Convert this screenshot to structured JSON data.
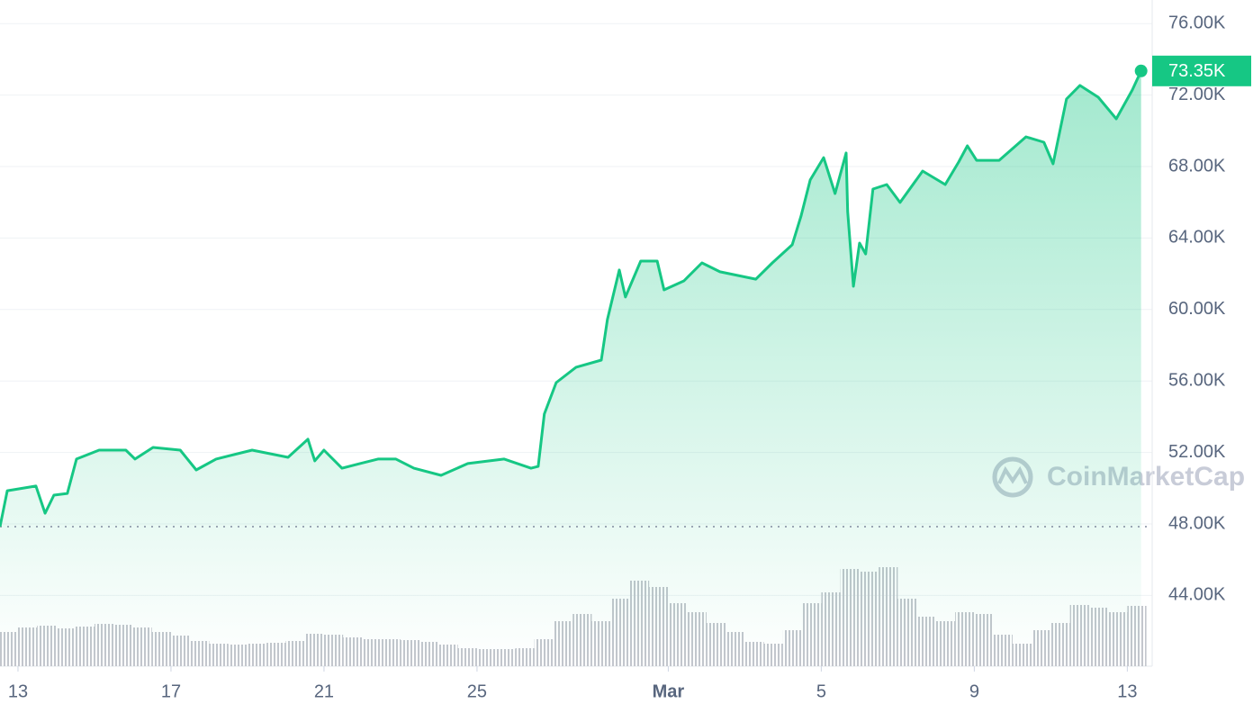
{
  "chart_data": {
    "type": "line",
    "x": [
      -0.47,
      -0.28,
      0.47,
      0.71,
      0.94,
      1.29,
      1.53,
      2.12,
      2.82,
      3.06,
      3.53,
      4.24,
      4.66,
      5.18,
      6.12,
      7.06,
      7.58,
      7.76,
      8.0,
      8.47,
      8.94,
      9.41,
      9.88,
      10.35,
      11.06,
      11.76,
      12.71,
      13.41,
      13.6,
      13.76,
      14.07,
      14.59,
      15.25,
      15.41,
      15.72,
      15.88,
      16.28,
      16.71,
      16.89,
      17.41,
      17.88,
      18.35,
      19.29,
      19.72,
      20.24,
      20.47,
      20.71,
      21.06,
      21.36,
      21.65,
      21.69,
      21.84,
      22.0,
      22.16,
      22.35,
      22.71,
      23.06,
      23.65,
      24.24,
      24.59,
      24.82,
      25.06,
      25.65,
      26.35,
      26.82,
      27.06,
      27.41,
      27.76,
      28.24,
      28.71,
      29.13,
      29.36
    ],
    "series": [
      {
        "color": "#16c784",
        "values": [
          47850,
          49860,
          50120,
          48600,
          49610,
          49710,
          51630,
          52130,
          52130,
          51630,
          52280,
          52130,
          51020,
          51630,
          52130,
          51730,
          52740,
          51530,
          52130,
          51120,
          51380,
          51630,
          51630,
          51120,
          50720,
          51380,
          51630,
          51120,
          51220,
          54150,
          55910,
          56770,
          57170,
          59440,
          62210,
          60700,
          62710,
          62710,
          61100,
          61600,
          62610,
          62110,
          61700,
          62610,
          63620,
          65230,
          67250,
          68500,
          66490,
          68760,
          65480,
          61300,
          63720,
          63110,
          66740,
          66990,
          65990,
          67750,
          66990,
          68250,
          69160,
          68350,
          68350,
          69660,
          69360,
          68150,
          71780,
          72540,
          71880,
          70670,
          72280,
          73350
        ],
        "value_labels": [
          null,
          null,
          null,
          null,
          null,
          null,
          null,
          null,
          null,
          null,
          null,
          null,
          null,
          null,
          null,
          null,
          null,
          null,
          null,
          null,
          null,
          null,
          null,
          null,
          null,
          null,
          null,
          null,
          null,
          null,
          null,
          null,
          null,
          null,
          null,
          null,
          null,
          null,
          null,
          null,
          null,
          null,
          null,
          null,
          null,
          null,
          null,
          null,
          null,
          null,
          null,
          null,
          null,
          null,
          null,
          null,
          null,
          null,
          null,
          null,
          null,
          null,
          null,
          null,
          null,
          null,
          null,
          null,
          null,
          null,
          null,
          "73.35K"
        ]
      },
      {
        "type": "bar",
        "axis": "y2",
        "color": "#c3c6cd",
        "x": [
          -0.25,
          0.25,
          0.75,
          1.25,
          1.75,
          2.25,
          2.75,
          3.25,
          3.75,
          4.25,
          4.75,
          5.25,
          5.75,
          6.25,
          6.75,
          7.25,
          7.75,
          8.25,
          8.75,
          9.25,
          9.75,
          10.25,
          10.75,
          11.25,
          11.75,
          12.25,
          12.75,
          13.25,
          13.75,
          14.25,
          14.75,
          15.25,
          15.75,
          16.25,
          16.75,
          17.25,
          17.75,
          18.25,
          18.75,
          19.25,
          19.75,
          20.25,
          20.75,
          21.25,
          21.75,
          22.25,
          22.75,
          23.25,
          23.75,
          24.25,
          24.75,
          25.25,
          25.75,
          26.25,
          26.75,
          27.25,
          27.75,
          28.25,
          28.75,
          29.25
        ],
        "values": [
          3.8,
          4.3,
          4.5,
          4.2,
          4.4,
          4.7,
          4.6,
          4.3,
          3.8,
          3.4,
          2.8,
          2.5,
          2.4,
          2.5,
          2.6,
          2.8,
          3.6,
          3.5,
          3.2,
          3.0,
          3.0,
          2.9,
          2.7,
          2.4,
          2.0,
          1.9,
          1.9,
          2.0,
          3.0,
          5.0,
          5.8,
          5.0,
          7.5,
          9.5,
          8.8,
          7.0,
          6.0,
          4.8,
          3.8,
          2.7,
          2.5,
          4.0,
          7.0,
          8.2,
          10.8,
          10.5,
          11.0,
          7.5,
          5.5,
          5.0,
          6.0,
          5.8,
          3.5,
          2.5,
          4.0,
          4.8,
          6.8,
          6.5,
          6.0,
          6.7
        ]
      }
    ],
    "xlim": [
      -0.47,
      29.65
    ],
    "xticks": [
      {
        "value": 0,
        "label": "13"
      },
      {
        "value": 4,
        "label": "17"
      },
      {
        "value": 8,
        "label": "21"
      },
      {
        "value": 12,
        "label": "25"
      },
      {
        "value": 17,
        "label": "Mar"
      },
      {
        "value": 21,
        "label": "5"
      },
      {
        "value": 25,
        "label": "9"
      },
      {
        "value": 29,
        "label": "13"
      }
    ],
    "ylim": [
      40040,
      77320
    ],
    "yticks": [
      {
        "value": 44000,
        "label": "44.00K"
      },
      {
        "value": 48000,
        "label": "48.00K"
      },
      {
        "value": 52000,
        "label": "52.00K"
      },
      {
        "value": 56000,
        "label": "56.00K"
      },
      {
        "value": 60000,
        "label": "60.00K"
      },
      {
        "value": 64000,
        "label": "64.00K"
      },
      {
        "value": 68000,
        "label": "68.00K"
      },
      {
        "value": 72000,
        "label": "72.00K"
      },
      {
        "value": 76000,
        "label": "76.00K"
      }
    ],
    "y2lim": [
      0,
      74
    ],
    "grid": true,
    "watermark": "CoinMarketCap"
  }
}
